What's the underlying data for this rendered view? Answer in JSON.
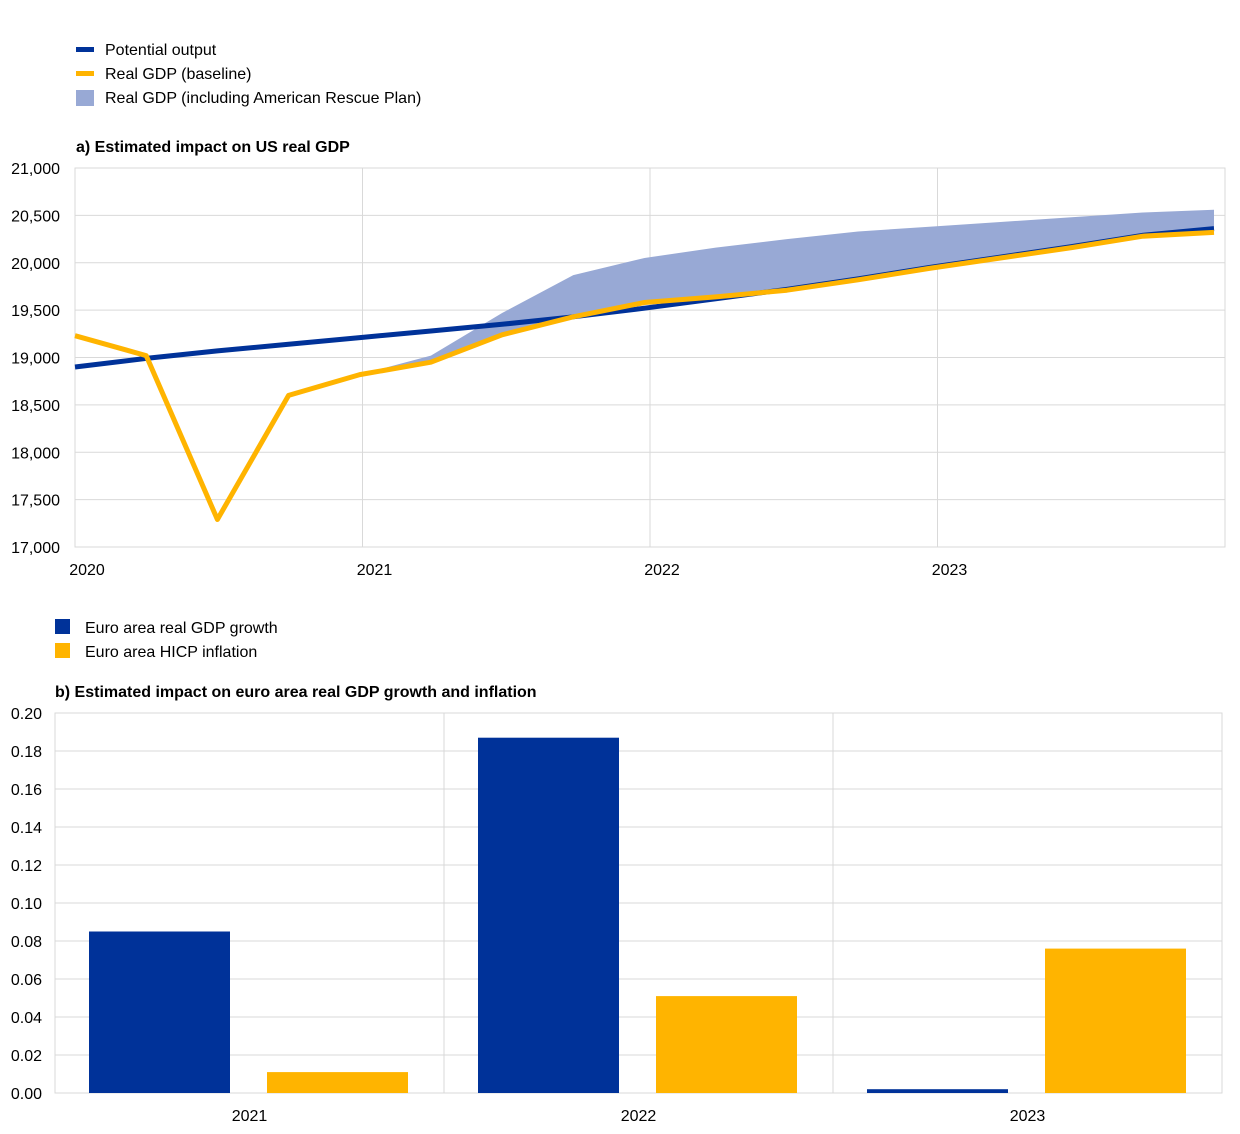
{
  "colors": {
    "navy": "#003299",
    "gold": "#FFB400",
    "band": "#98A9D5",
    "grid": "#d9d9d9"
  },
  "chart_data": [
    {
      "type": "line",
      "title": "a) Estimated impact on US real GDP",
      "xlabel": "",
      "ylabel": "",
      "x": [
        "2020Q1",
        "2020Q2",
        "2020Q3",
        "2020Q4",
        "2021Q1",
        "2021Q2",
        "2021Q3",
        "2021Q4",
        "2022Q1",
        "2022Q2",
        "2022Q3",
        "2022Q4",
        "2023Q1",
        "2023Q2",
        "2023Q3",
        "2023Q4",
        "2024Q1"
      ],
      "x_tick_labels": [
        "2020",
        "2021",
        "2022",
        "2023"
      ],
      "y_tick_labels": [
        "17,000",
        "17,500",
        "18,000",
        "18,500",
        "19,000",
        "19,500",
        "20,000",
        "20,500",
        "21,000"
      ],
      "ylim": [
        17000,
        21000
      ],
      "grid": true,
      "legend_position": "top-left",
      "series": [
        {
          "name": "Potential output",
          "kind": "line",
          "color": "#003299",
          "values": [
            18900,
            18990,
            19070,
            19140,
            19210,
            19280,
            19350,
            19430,
            19520,
            19620,
            19720,
            19830,
            19950,
            20060,
            20170,
            20290,
            20360
          ]
        },
        {
          "name": "Real GDP (baseline)",
          "kind": "line",
          "color": "#FFB400",
          "values": [
            19230,
            19020,
            17290,
            18600,
            18820,
            18950,
            19240,
            19430,
            19580,
            19640,
            19710,
            19820,
            19940,
            20050,
            20160,
            20280,
            20320
          ]
        },
        {
          "name": "Real GDP (including American Rescue Plan)",
          "kind": "area",
          "color": "#98A9D5",
          "values": [
            19230,
            19020,
            17290,
            18600,
            18820,
            19020,
            19470,
            19870,
            20050,
            20160,
            20250,
            20330,
            20380,
            20430,
            20480,
            20530,
            20560
          ]
        }
      ]
    },
    {
      "type": "bar",
      "title": "b) Estimated impact on euro area real GDP growth and inflation",
      "xlabel": "",
      "ylabel": "",
      "categories": [
        "2021",
        "2022",
        "2023"
      ],
      "y_tick_labels": [
        "0.00",
        "0.02",
        "0.04",
        "0.06",
        "0.08",
        "0.10",
        "0.12",
        "0.14",
        "0.16",
        "0.18",
        "0.20"
      ],
      "ylim": [
        0,
        0.2
      ],
      "grid": true,
      "legend_position": "top-left",
      "series": [
        {
          "name": "Euro area real GDP growth",
          "color": "#003299",
          "values": [
            0.085,
            0.187,
            0.002
          ]
        },
        {
          "name": "Euro area HICP inflation",
          "color": "#FFB400",
          "values": [
            0.011,
            0.051,
            0.076
          ]
        }
      ]
    }
  ]
}
